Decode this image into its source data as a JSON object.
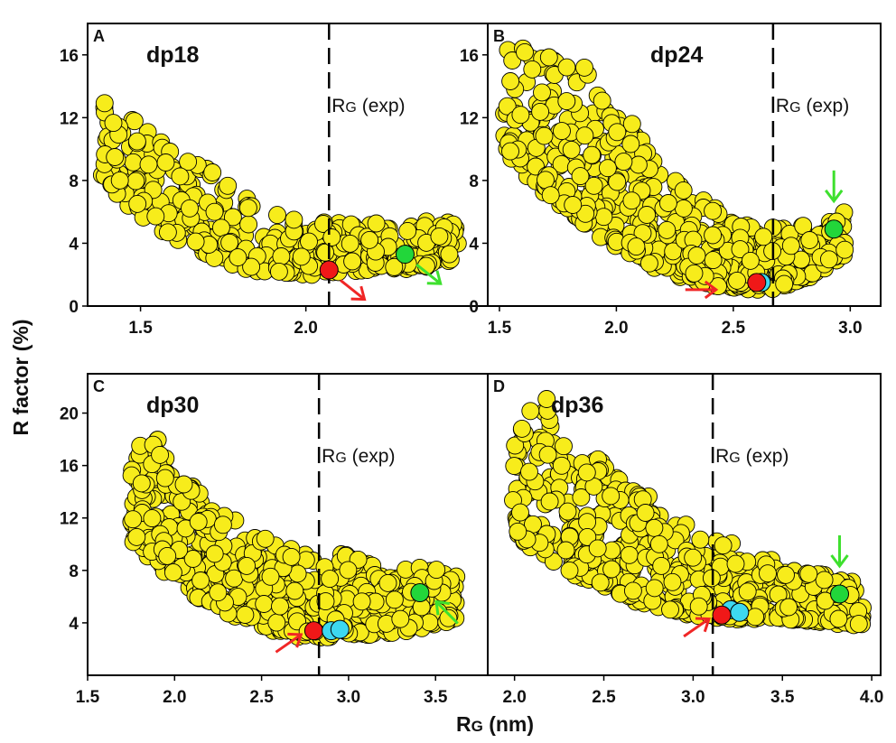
{
  "figure": {
    "ylabel": "R factor (%)",
    "xlabel_main": "R",
    "xlabel_sub": "G",
    "xlabel_unit": " (nm)",
    "vline_label_main": "R",
    "vline_label_sub": "G",
    "vline_label_suffix": " (exp)"
  },
  "colors": {
    "sample": "#f7ec1b",
    "best_fit": "#f01818",
    "alternative": "#22d63a",
    "cluster": "#3dd8f0",
    "red_arrow": "#f02626",
    "green_arrow": "#3ee02e"
  },
  "chart_data": [
    {
      "type": "scatter",
      "panel": "A",
      "title": "dp18",
      "xlim": [
        1.34,
        2.55
      ],
      "ylim": [
        0,
        18
      ],
      "xticks": [
        1.5,
        2.0
      ],
      "xtick_labels": [
        "1.5",
        "2.0"
      ],
      "yticks": [
        0,
        4,
        8,
        12,
        16
      ],
      "ytick_labels": [
        "0",
        "4",
        "8",
        "12",
        "16"
      ],
      "rg_exp": 2.07,
      "cloud": {
        "xmin": 1.38,
        "xmax": 2.46,
        "x_at_min": 2.0,
        "r_min": 2.0,
        "upper": [
          [
            1.38,
            13.5
          ],
          [
            1.55,
            11.3
          ],
          [
            1.7,
            9.0
          ],
          [
            1.85,
            6.7
          ],
          [
            2.0,
            5.3
          ],
          [
            2.2,
            5.2
          ],
          [
            2.46,
            5.4
          ]
        ],
        "spread": 0.11,
        "count": 420,
        "seed": 18
      },
      "highlights": [
        {
          "role": "best_fit",
          "x": 2.07,
          "r": 2.3,
          "color": "#f01818"
        },
        {
          "role": "alternative",
          "x": 2.3,
          "r": 3.3,
          "color": "#22d63a"
        }
      ],
      "arrows": [
        {
          "role": "best_fit",
          "color": "#f02626",
          "direction": "lower-right"
        },
        {
          "role": "alternative",
          "color": "#3ee02e",
          "direction": "lower-right"
        }
      ]
    },
    {
      "type": "scatter",
      "panel": "B",
      "title": "dp24",
      "xlim": [
        1.45,
        3.13
      ],
      "ylim": [
        0,
        18
      ],
      "xticks": [
        1.5,
        2.0,
        2.5,
        3.0
      ],
      "xtick_labels": [
        "1.5",
        "2.0",
        "2.5",
        "3.0"
      ],
      "yticks": [
        0,
        4,
        8,
        12,
        16
      ],
      "ytick_labels": [
        "0",
        "4",
        "8",
        "12",
        "16"
      ],
      "rg_exp": 2.67,
      "cloud": {
        "xmin": 1.52,
        "xmax": 2.98,
        "x_at_min": 2.6,
        "r_min": 1.1,
        "upper": [
          [
            1.52,
            16.8
          ],
          [
            1.75,
            16.8
          ],
          [
            1.95,
            13.5
          ],
          [
            2.15,
            10.0
          ],
          [
            2.35,
            7.0
          ],
          [
            2.55,
            5.2
          ],
          [
            2.75,
            5.0
          ],
          [
            2.98,
            6.0
          ]
        ],
        "spread": 0.06,
        "count": 560,
        "seed": 24
      },
      "highlights": [
        {
          "role": "cluster",
          "x": 2.62,
          "r": 1.5,
          "color": "#3dd8f0"
        },
        {
          "role": "best_fit",
          "x": 2.6,
          "r": 1.5,
          "color": "#f01818"
        },
        {
          "role": "alternative",
          "x": 2.93,
          "r": 4.9,
          "color": "#22d63a"
        }
      ],
      "arrows": [
        {
          "role": "best_fit",
          "color": "#f02626",
          "direction": "right"
        },
        {
          "role": "alternative",
          "color": "#3ee02e",
          "direction": "down"
        }
      ]
    },
    {
      "type": "scatter",
      "panel": "C",
      "title": "dp30",
      "xlim": [
        1.5,
        3.8
      ],
      "ylim": [
        0,
        23
      ],
      "xticks": [
        1.5,
        2.0,
        2.5,
        3.0,
        3.5
      ],
      "xtick_labels": [
        "1.5",
        "2.0",
        "2.5",
        "3.0",
        "3.5"
      ],
      "yticks": [
        4,
        8,
        12,
        16,
        20
      ],
      "ytick_labels": [
        "4",
        "8",
        "12",
        "16",
        "20"
      ],
      "rg_exp": 2.83,
      "cloud": {
        "xmin": 1.75,
        "xmax": 3.62,
        "x_at_min": 2.85,
        "r_min": 3.0,
        "upper": [
          [
            1.75,
            17.5
          ],
          [
            1.9,
            18.0
          ],
          [
            2.1,
            14.5
          ],
          [
            2.4,
            11.0
          ],
          [
            2.7,
            9.8
          ],
          [
            3.0,
            9.5
          ],
          [
            3.3,
            8.5
          ],
          [
            3.62,
            7.8
          ]
        ],
        "spread": 0.08,
        "count": 620,
        "seed": 30
      },
      "highlights": [
        {
          "role": "best_fit",
          "x": 2.8,
          "r": 3.4,
          "color": "#f01818"
        },
        {
          "role": "cluster",
          "x": 2.9,
          "r": 3.4,
          "color": "#3dd8f0"
        },
        {
          "role": "cluster",
          "x": 2.95,
          "r": 3.5,
          "color": "#3dd8f0"
        },
        {
          "role": "alternative",
          "x": 3.41,
          "r": 6.3,
          "color": "#22d63a"
        }
      ],
      "arrows": [
        {
          "role": "best_fit",
          "color": "#f02626",
          "direction": "upper-right"
        },
        {
          "role": "alternative",
          "color": "#3ee02e",
          "direction": "upper-left"
        }
      ]
    },
    {
      "type": "scatter",
      "panel": "D",
      "title": "dp36",
      "xlim": [
        1.85,
        4.05
      ],
      "ylim": [
        0,
        23
      ],
      "xticks": [
        2.0,
        2.5,
        3.0,
        3.5,
        4.0
      ],
      "xtick_labels": [
        "2.0",
        "2.5",
        "3.0",
        "3.5",
        "4.0"
      ],
      "yticks": [],
      "ytick_labels": [],
      "rg_exp": 3.11,
      "cloud": {
        "xmin": 1.98,
        "xmax": 3.95,
        "x_at_min": 3.3,
        "r_min": 4.3,
        "upper": [
          [
            1.98,
            18.5
          ],
          [
            2.15,
            21.8
          ],
          [
            2.3,
            18.5
          ],
          [
            2.6,
            15.0
          ],
          [
            2.9,
            12.0
          ],
          [
            3.2,
            10.0
          ],
          [
            3.5,
            8.5
          ],
          [
            3.95,
            7.0
          ]
        ],
        "spread": 0.07,
        "count": 620,
        "seed": 36
      },
      "highlights": [
        {
          "role": "cluster",
          "x": 3.21,
          "r": 5.0,
          "color": "#3dd8f0"
        },
        {
          "role": "cluster",
          "x": 3.26,
          "r": 4.8,
          "color": "#3dd8f0"
        },
        {
          "role": "best_fit",
          "x": 3.16,
          "r": 4.6,
          "color": "#f01818"
        },
        {
          "role": "alternative",
          "x": 3.82,
          "r": 6.2,
          "color": "#22d63a"
        }
      ],
      "arrows": [
        {
          "role": "best_fit",
          "color": "#f02626",
          "direction": "upper-right"
        },
        {
          "role": "alternative",
          "color": "#3ee02e",
          "direction": "down"
        }
      ]
    }
  ]
}
